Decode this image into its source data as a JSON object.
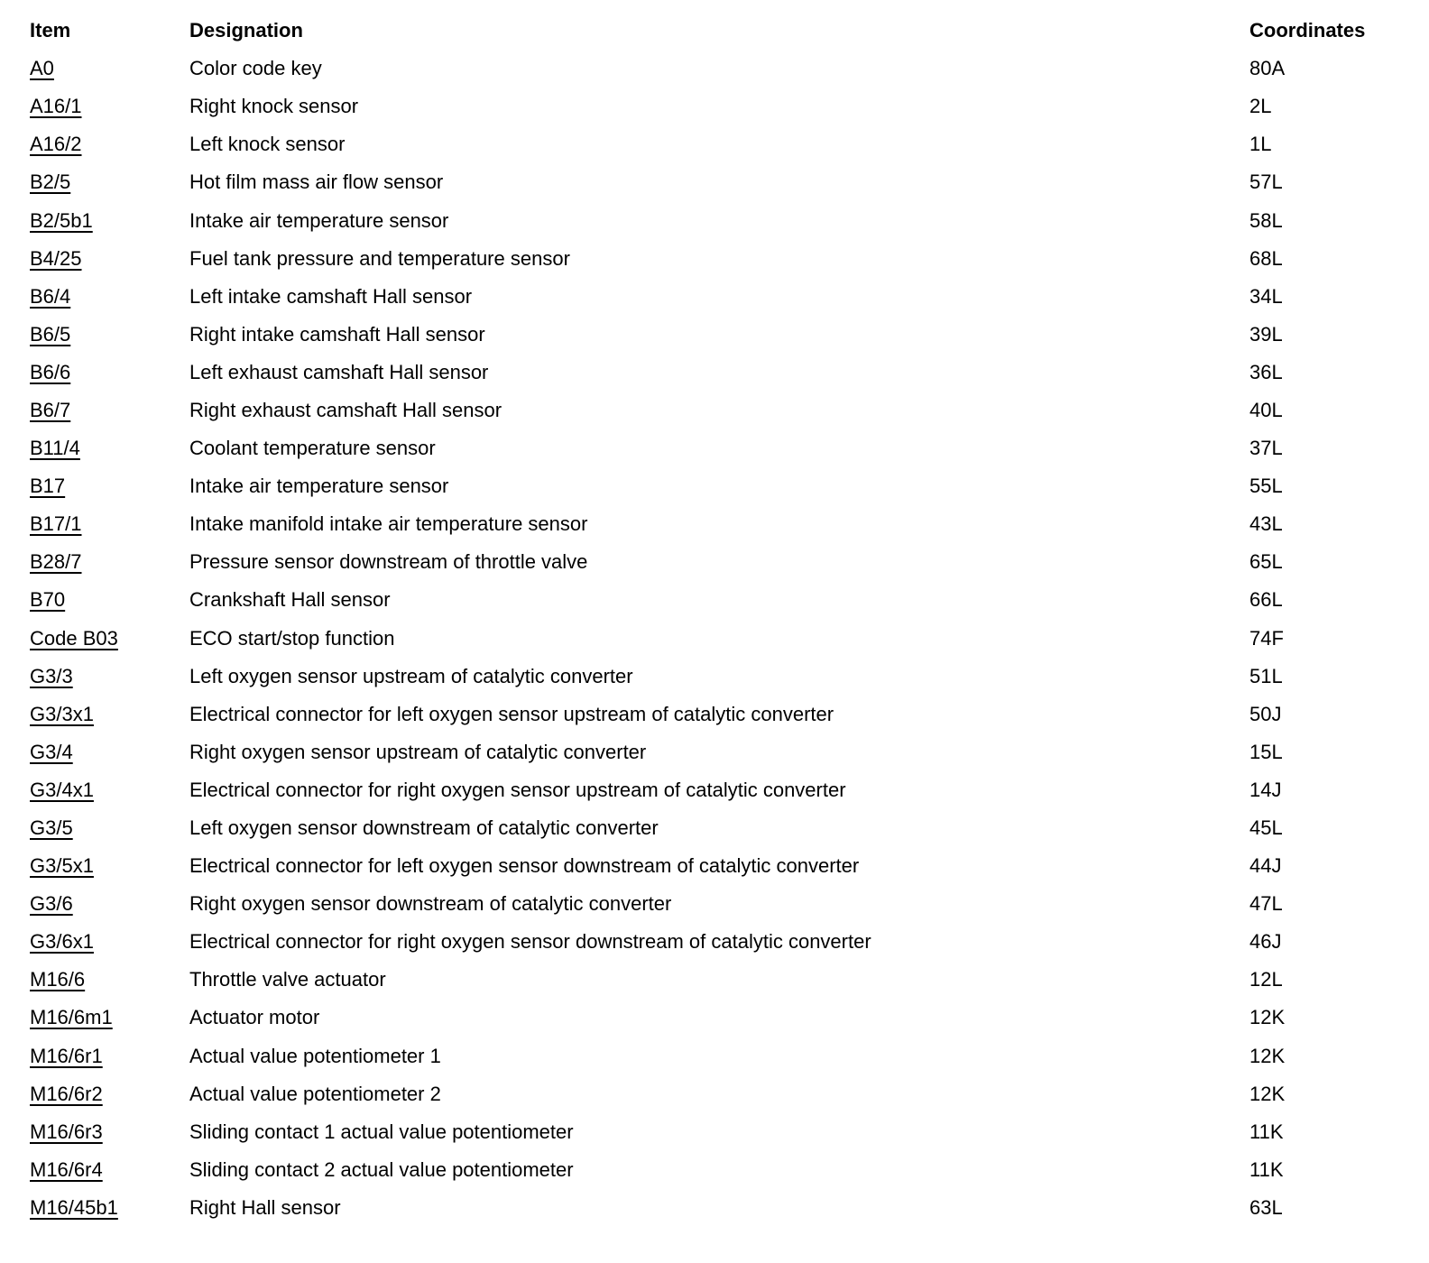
{
  "table": {
    "columns": [
      "Item",
      "Designation",
      "Coordinates"
    ],
    "rows": [
      {
        "item": "A0",
        "designation": "Color code key",
        "coordinates": "80A"
      },
      {
        "item": "A16/1",
        "designation": "Right knock sensor",
        "coordinates": "2L"
      },
      {
        "item": "A16/2",
        "designation": "Left knock sensor",
        "coordinates": "1L"
      },
      {
        "item": "B2/5",
        "designation": "Hot film mass air flow sensor",
        "coordinates": "57L"
      },
      {
        "item": "B2/5b1",
        "designation": "Intake air temperature sensor",
        "coordinates": "58L"
      },
      {
        "item": "B4/25",
        "designation": "Fuel tank pressure and temperature sensor",
        "coordinates": "68L"
      },
      {
        "item": "B6/4",
        "designation": "Left intake camshaft Hall sensor",
        "coordinates": "34L"
      },
      {
        "item": "B6/5",
        "designation": "Right intake camshaft Hall sensor",
        "coordinates": "39L"
      },
      {
        "item": "B6/6",
        "designation": "Left exhaust camshaft Hall sensor",
        "coordinates": "36L"
      },
      {
        "item": "B6/7",
        "designation": "Right exhaust camshaft Hall sensor",
        "coordinates": "40L"
      },
      {
        "item": "B11/4",
        "designation": "Coolant temperature sensor",
        "coordinates": "37L"
      },
      {
        "item": "B17",
        "designation": "Intake air temperature sensor",
        "coordinates": "55L"
      },
      {
        "item": "B17/1",
        "designation": "Intake manifold intake air temperature sensor",
        "coordinates": "43L"
      },
      {
        "item": "B28/7",
        "designation": "Pressure sensor downstream of throttle valve",
        "coordinates": "65L"
      },
      {
        "item": "B70",
        "designation": "Crankshaft Hall sensor",
        "coordinates": "66L"
      },
      {
        "item": "Code B03",
        "designation": "ECO start/stop function",
        "coordinates": "74F"
      },
      {
        "item": "G3/3",
        "designation": "Left oxygen sensor upstream of catalytic converter",
        "coordinates": "51L"
      },
      {
        "item": "G3/3x1",
        "designation": "Electrical connector for left oxygen sensor upstream of catalytic converter",
        "coordinates": "50J"
      },
      {
        "item": "G3/4",
        "designation": "Right oxygen sensor upstream of catalytic converter",
        "coordinates": "15L"
      },
      {
        "item": "G3/4x1",
        "designation": "Electrical connector for right oxygen sensor upstream of catalytic converter",
        "coordinates": "14J"
      },
      {
        "item": "G3/5",
        "designation": "Left oxygen sensor downstream of catalytic converter",
        "coordinates": "45L"
      },
      {
        "item": "G3/5x1",
        "designation": "Electrical connector for left oxygen sensor downstream of catalytic converter",
        "coordinates": "44J"
      },
      {
        "item": "G3/6",
        "designation": "Right oxygen sensor downstream of catalytic converter",
        "coordinates": "47L"
      },
      {
        "item": "G3/6x1",
        "designation": "Electrical connector for right oxygen sensor downstream of catalytic converter",
        "coordinates": "46J"
      },
      {
        "item": "M16/6",
        "designation": "Throttle valve actuator",
        "coordinates": "12L"
      },
      {
        "item": "M16/6m1",
        "designation": "Actuator motor",
        "coordinates": "12K"
      },
      {
        "item": "M16/6r1",
        "designation": "Actual value potentiometer 1",
        "coordinates": "12K"
      },
      {
        "item": "M16/6r2",
        "designation": "Actual value potentiometer 2",
        "coordinates": "12K"
      },
      {
        "item": "M16/6r3",
        "designation": "Sliding contact 1 actual value potentiometer",
        "coordinates": "11K"
      },
      {
        "item": "M16/6r4",
        "designation": "Sliding contact 2 actual value potentiometer",
        "coordinates": "11K"
      },
      {
        "item": "M16/45b1",
        "designation": "Right Hall sensor",
        "coordinates": "63L"
      }
    ]
  }
}
